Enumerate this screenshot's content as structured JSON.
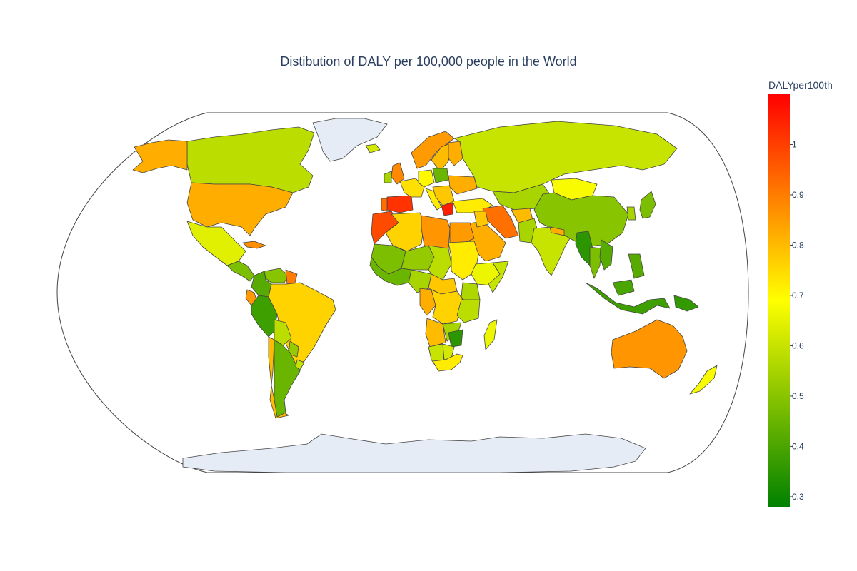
{
  "title": "Distibution of DALY per 100,000 people in the World",
  "colorbar": {
    "title": "DALYper100th",
    "range": [
      0.28,
      1.1
    ],
    "ticks": [
      {
        "value": 1,
        "label": "1"
      },
      {
        "value": 0.9,
        "label": "0.9"
      },
      {
        "value": 0.8,
        "label": "0.8"
      },
      {
        "value": 0.7,
        "label": "0.7"
      },
      {
        "value": 0.6,
        "label": "0.6"
      },
      {
        "value": 0.5,
        "label": "0.5"
      },
      {
        "value": 0.4,
        "label": "0.4"
      },
      {
        "value": 0.3,
        "label": "0.3"
      }
    ],
    "colorscale": [
      {
        "stop": 0.0,
        "color": "#008000"
      },
      {
        "stop": 0.5,
        "color": "#ffff00"
      },
      {
        "stop": 1.0,
        "color": "#ff0000"
      }
    ]
  },
  "map": {
    "projection": "natural earth",
    "no_data_color": "#e5ecf6",
    "border_color": "#444444"
  },
  "chart_data": {
    "type": "choropleth",
    "title": "Distibution of DALY per 100,000 people in the World",
    "colorbar_title": "DALYper100th",
    "zrange": [
      0.28,
      1.1
    ],
    "regions": [
      {
        "name": "Canada",
        "value": 0.58
      },
      {
        "name": "Alaska (USA)",
        "value": 0.82
      },
      {
        "name": "United States",
        "value": 0.82
      },
      {
        "name": "Mexico",
        "value": 0.64
      },
      {
        "name": "Greenland",
        "value": null
      },
      {
        "name": "Central America",
        "value": 0.48
      },
      {
        "name": "Cuba",
        "value": 0.87
      },
      {
        "name": "Venezuela",
        "value": 0.5
      },
      {
        "name": "Colombia",
        "value": 0.42
      },
      {
        "name": "Guyana",
        "value": 0.9
      },
      {
        "name": "Ecuador",
        "value": 0.85
      },
      {
        "name": "Peru",
        "value": 0.38
      },
      {
        "name": "Brazil",
        "value": 0.76
      },
      {
        "name": "Bolivia",
        "value": 0.58
      },
      {
        "name": "Paraguay",
        "value": 0.52
      },
      {
        "name": "Chile",
        "value": 0.8
      },
      {
        "name": "Argentina",
        "value": 0.45
      },
      {
        "name": "Uruguay",
        "value": 0.6
      },
      {
        "name": "Iceland",
        "value": 0.62
      },
      {
        "name": "Norway",
        "value": 0.85
      },
      {
        "name": "Sweden",
        "value": 0.8
      },
      {
        "name": "Finland",
        "value": 0.82
      },
      {
        "name": "United Kingdom",
        "value": 0.88
      },
      {
        "name": "Ireland",
        "value": 0.55
      },
      {
        "name": "Spain",
        "value": 1.02
      },
      {
        "name": "Portugal",
        "value": 0.92
      },
      {
        "name": "France",
        "value": 0.74
      },
      {
        "name": "Germany",
        "value": 0.7
      },
      {
        "name": "Poland",
        "value": 0.45
      },
      {
        "name": "Italy",
        "value": 0.72
      },
      {
        "name": "Greece",
        "value": 1.05
      },
      {
        "name": "Balkans",
        "value": 0.78
      },
      {
        "name": "Ukraine",
        "value": 0.82
      },
      {
        "name": "Turkey",
        "value": 0.72
      },
      {
        "name": "Russia",
        "value": 0.6
      },
      {
        "name": "Kazakhstan",
        "value": 0.55
      },
      {
        "name": "Mongolia",
        "value": 0.68
      },
      {
        "name": "China",
        "value": 0.5
      },
      {
        "name": "Korea",
        "value": 0.55
      },
      {
        "name": "Japan",
        "value": 0.48
      },
      {
        "name": "Iran",
        "value": 0.92
      },
      {
        "name": "Afghanistan",
        "value": 0.8
      },
      {
        "name": "Saudi Arabia",
        "value": 0.82
      },
      {
        "name": "Iraq",
        "value": 0.78
      },
      {
        "name": "Pakistan",
        "value": 0.55
      },
      {
        "name": "India",
        "value": 0.6
      },
      {
        "name": "Nepal",
        "value": 0.82
      },
      {
        "name": "Myanmar",
        "value": 0.35
      },
      {
        "name": "Thailand",
        "value": 0.48
      },
      {
        "name": "Vietnam",
        "value": 0.42
      },
      {
        "name": "Malaysia",
        "value": 0.4
      },
      {
        "name": "Indonesia",
        "value": 0.38
      },
      {
        "name": "Philippines",
        "value": 0.42
      },
      {
        "name": "Papua New Guinea",
        "value": 0.36
      },
      {
        "name": "Australia",
        "value": 0.86
      },
      {
        "name": "New Zealand",
        "value": 0.68
      },
      {
        "name": "Morocco",
        "value": 0.98
      },
      {
        "name": "Algeria",
        "value": 0.76
      },
      {
        "name": "Libya",
        "value": 0.86
      },
      {
        "name": "Egypt",
        "value": 0.85
      },
      {
        "name": "Mali",
        "value": 0.48
      },
      {
        "name": "Niger",
        "value": 0.52
      },
      {
        "name": "Chad",
        "value": 0.58
      },
      {
        "name": "Sudan",
        "value": 0.72
      },
      {
        "name": "Ethiopia",
        "value": 0.66
      },
      {
        "name": "Somalia",
        "value": 0.6
      },
      {
        "name": "Nigeria",
        "value": 0.55
      },
      {
        "name": "West Africa coast",
        "value": 0.45
      },
      {
        "name": "Cameroon/CAR",
        "value": 0.78
      },
      {
        "name": "Gabon/Congo",
        "value": 0.82
      },
      {
        "name": "DR Congo",
        "value": 0.76
      },
      {
        "name": "Kenya",
        "value": 0.56
      },
      {
        "name": "Tanzania",
        "value": 0.58
      },
      {
        "name": "Angola",
        "value": 0.8
      },
      {
        "name": "Zambia",
        "value": 0.55
      },
      {
        "name": "Zimbabwe",
        "value": 0.35
      },
      {
        "name": "Namibia",
        "value": 0.6
      },
      {
        "name": "Botswana",
        "value": 0.62
      },
      {
        "name": "South Africa",
        "value": 0.72
      },
      {
        "name": "Madagascar",
        "value": 0.66
      },
      {
        "name": "Antarctica",
        "value": null
      }
    ]
  }
}
